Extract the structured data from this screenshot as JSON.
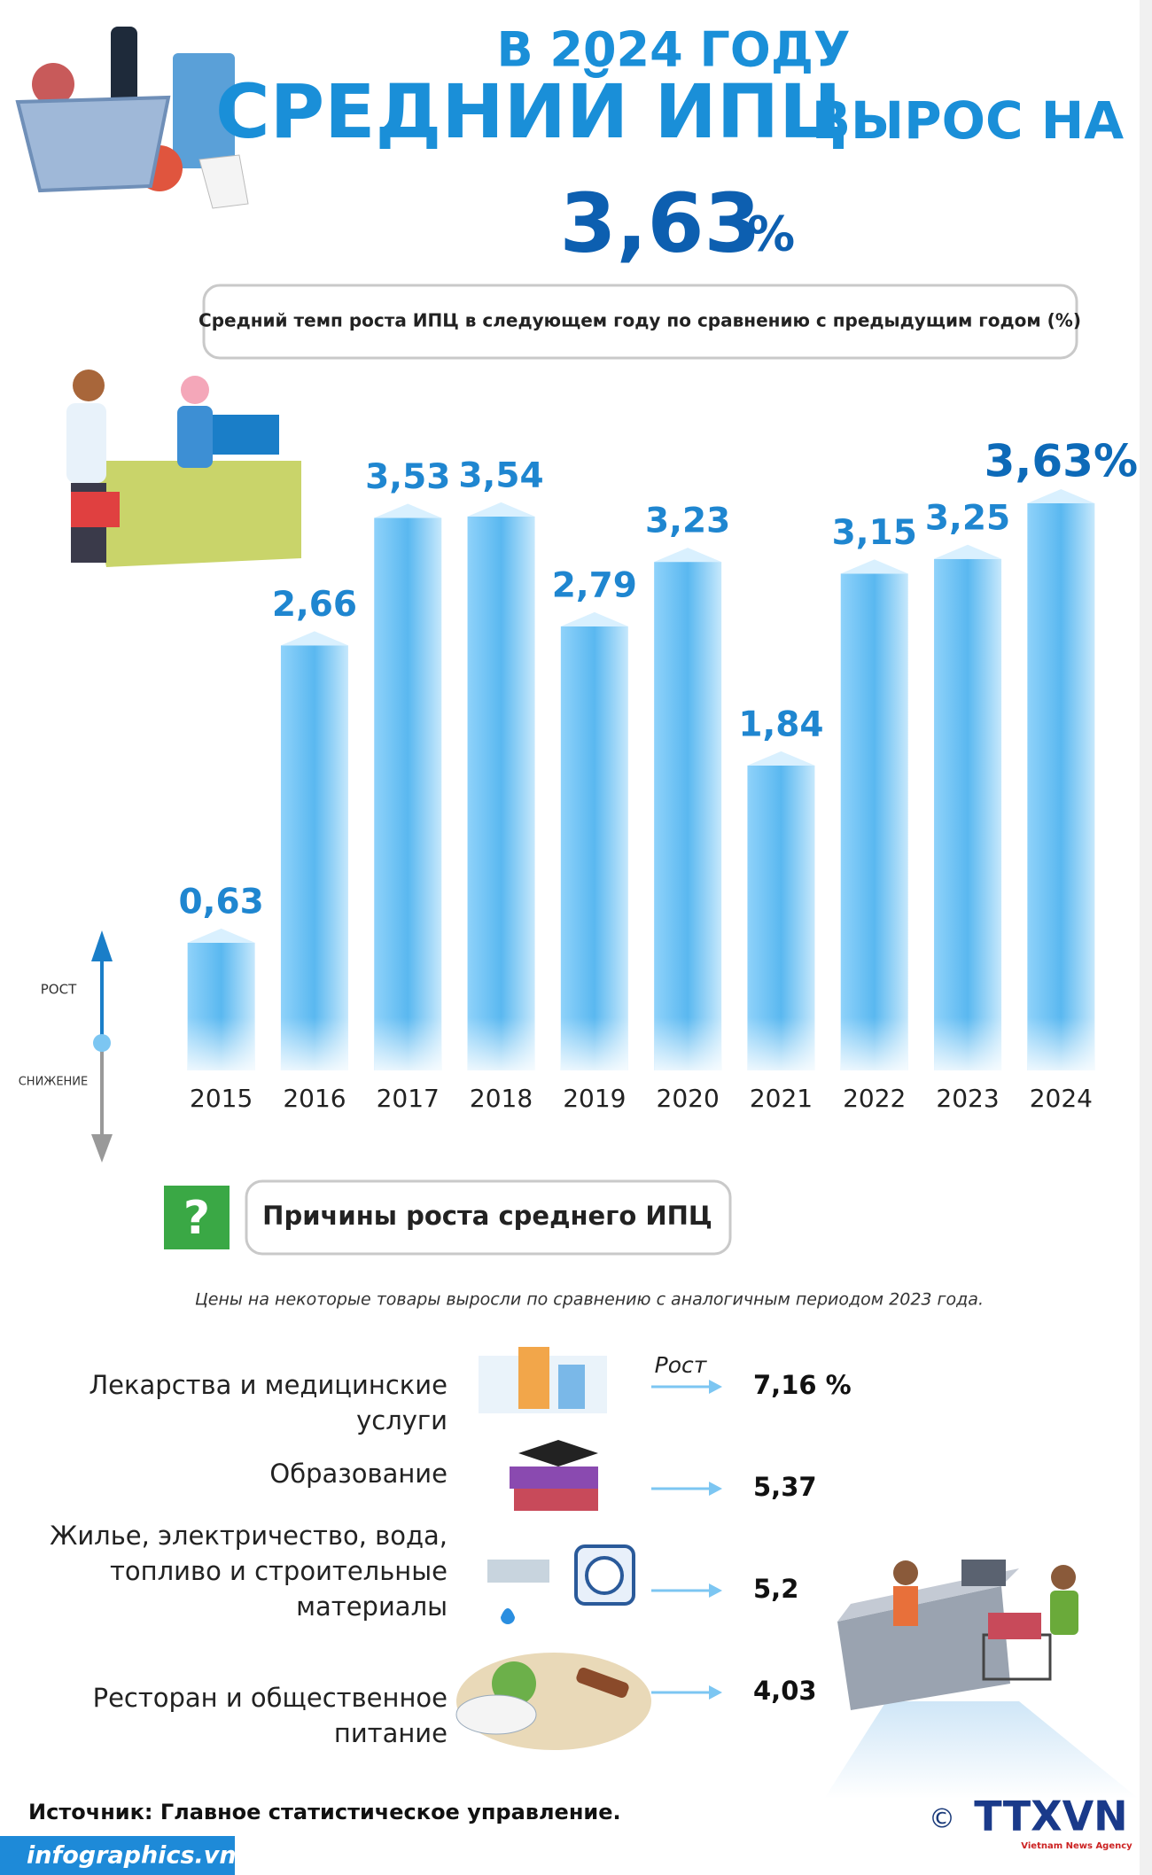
{
  "header": {
    "line1": "В 2024 ГОДУ",
    "line2": "СРЕДНИЙ ИПЦ",
    "line2b": "ВЫРОС НА",
    "value": "3,63",
    "unit": "%"
  },
  "chart_data": {
    "type": "bar",
    "subtitle": "Средний темп роста ИПЦ в следующем году по сравнению с предыдущим годом (%)",
    "categories": [
      "2015",
      "2016",
      "2017",
      "2018",
      "2019",
      "2020",
      "2021",
      "2022",
      "2023",
      "2024"
    ],
    "values": [
      0.63,
      2.66,
      3.53,
      3.54,
      2.79,
      3.23,
      1.84,
      3.15,
      3.25,
      3.63
    ],
    "value_labels": [
      "0,63",
      "2,66",
      "3,53",
      "3,54",
      "2,79",
      "3,23",
      "1,84",
      "3,15",
      "3,25",
      "3,63%"
    ],
    "color": "#5ab8f0",
    "legend": {
      "up": "РОСТ",
      "down": "СНИЖЕНИЕ"
    }
  },
  "reasons": {
    "title": "Причины роста среднего ИПЦ",
    "note": "Цены на некоторые товары выросли по сравнению с аналогичным периодом 2023 года.",
    "growth_label": "Рост",
    "items": [
      {
        "lines": [
          "Лекарства и медицинские",
          "услуги"
        ],
        "value": "7,16 %"
      },
      {
        "lines": [
          "Образование"
        ],
        "value": "5,37"
      },
      {
        "lines": [
          "Жилье, электричество, вода,",
          "топливо и строительные",
          "материалы"
        ],
        "value": "5,2"
      },
      {
        "lines": [
          "Ресторан и общественное",
          "питание"
        ],
        "value": "4,03"
      }
    ]
  },
  "footer": {
    "source": "Источник: Главное статистическое управление.",
    "site": "infographics.vn",
    "logo": "TTXVN",
    "agency": "Vietnam News Agency"
  }
}
